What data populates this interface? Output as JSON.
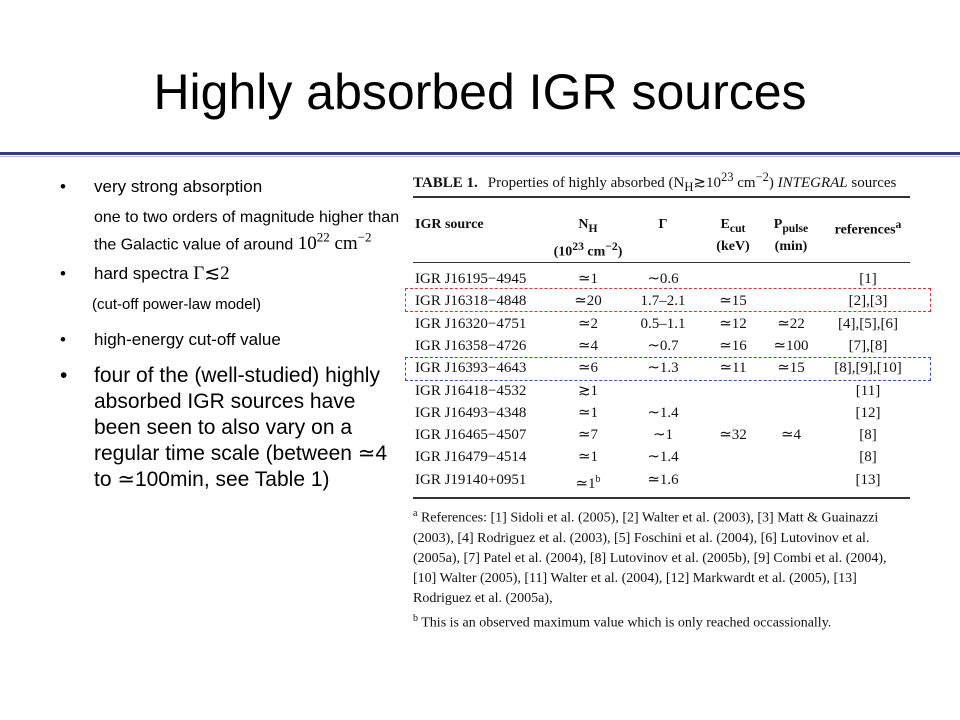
{
  "title": "Highly absorbed IGR sources",
  "bullets": {
    "b1": "very strong absorption",
    "b1_sub": "one to two orders of magnitude higher than the Galactic value of around",
    "b1_math_base": "10",
    "b1_math_exp": "22",
    "b1_math_unit": "cm",
    "b1_math_unit_exp": "−2",
    "b2": "hard spectra",
    "b2_math": "Γ≲2",
    "b2_sub": "(cut-off power-law model)",
    "b3": "high-energy cut-off value",
    "b4": "four of the (well-studied) highly absorbed IGR sources have been seen to also vary on a regular time scale (between ≃4 to ≃100min, see Table 1)",
    "bullet_char": "•"
  },
  "table": {
    "label": "TABLE 1.",
    "caption": "Properties of highly absorbed (N",
    "caption_sub": "H",
    "caption_rest": "≳10",
    "caption_exp": "23",
    "caption_unit": " cm",
    "caption_unit_exp": "−2",
    "caption_end": ") ",
    "caption_italic": "INTEGRAL",
    "caption_tail": " sources",
    "headers": {
      "source": "IGR source",
      "nh": "N",
      "nh_sub": "H",
      "nh_unit": "(10",
      "nh_unit_exp": "23",
      "nh_unit_rest": " cm",
      "nh_unit_rest_exp": "−2",
      "nh_unit_close": ")",
      "gamma": "Γ",
      "ecut": "E",
      "ecut_sub": "cut",
      "ecut_unit": "(keV)",
      "ppulse": "P",
      "ppulse_sub": "pulse",
      "ppulse_unit": "(min)",
      "refs": "references",
      "refs_sup": "a"
    },
    "rows": [
      {
        "source": "IGR J16195−4945",
        "nh": "≃1",
        "gamma": "∼0.6",
        "ecut": "",
        "ppulse": "",
        "refs": "[1]"
      },
      {
        "source": "IGR J16318−4848",
        "nh": "≃20",
        "gamma": "1.7–2.1",
        "ecut": "≃15",
        "ppulse": "",
        "refs": "[2],[3]"
      },
      {
        "source": "IGR J16320−4751",
        "nh": "≃2",
        "gamma": "0.5–1.1",
        "ecut": "≃12",
        "ppulse": "≃22",
        "refs": "[4],[5],[6]"
      },
      {
        "source": "IGR J16358−4726",
        "nh": "≃4",
        "gamma": "∼0.7",
        "ecut": "≃16",
        "ppulse": "≃100",
        "refs": "[7],[8]"
      },
      {
        "source": "IGR J16393−4643",
        "nh": "≃6",
        "gamma": "∼1.3",
        "ecut": "≃11",
        "ppulse": "≃15",
        "refs": "[8],[9],[10]"
      },
      {
        "source": "IGR J16418−4532",
        "nh": "≳1",
        "gamma": "",
        "ecut": "",
        "ppulse": "",
        "refs": "[11]"
      },
      {
        "source": "IGR J16493−4348",
        "nh": "≃1",
        "gamma": "∼1.4",
        "ecut": "",
        "ppulse": "",
        "refs": "[12]"
      },
      {
        "source": "IGR J16465−4507",
        "nh": "≃7",
        "gamma": "∼1",
        "ecut": "≃32",
        "ppulse": "≃4",
        "refs": "[8]"
      },
      {
        "source": "IGR J16479−4514",
        "nh": "≃1",
        "gamma": "∼1.4",
        "ecut": "",
        "ppulse": "",
        "refs": "[8]"
      },
      {
        "source": "IGR J19140+0951",
        "nh": "≃1",
        "nh_sup": "b",
        "gamma": "≃1.6",
        "ecut": "",
        "ppulse": "",
        "refs": "[13]"
      }
    ],
    "notes": {
      "a_sup": "a",
      "a": " References: [1] Sidoli et al. (2005), [2] Walter et al. (2003), [3] Matt & Guainazzi (2003), [4] Rodriguez et al. (2003), [5] Foschini et al. (2004), [6] Lutovinov et al. (2005a), [7] Patel et al. (2004), [8] Lutovinov et al. (2005b), [9] Combi et al. (2004), [10] Walter (2005), [11] Walter et al. (2004), [12] Markwardt et al. (2005), [13] Rodriguez et al. (2005a),",
      "b_sup": "b",
      "b": " This is an observed maximum value which is only reached occassionally."
    },
    "highlight_colors": {
      "red": "#e03030",
      "blue": "#3050c0"
    }
  }
}
